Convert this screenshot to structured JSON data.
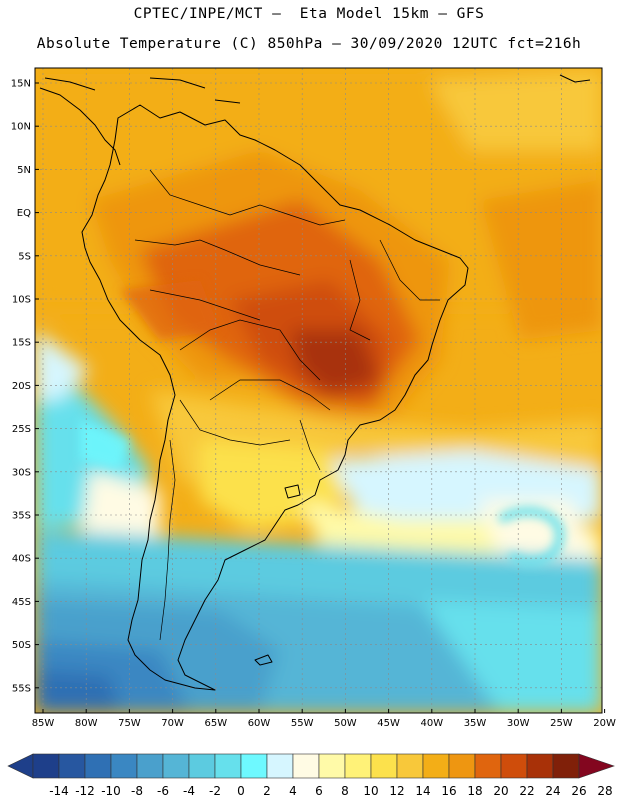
{
  "header": {
    "line1": "CPTEC/INPE/MCT —  Eta Model 15km — GFS",
    "line2": "Absolute Temperature (C) 850hPa — 30/09/2020 12UTC fct=216h"
  },
  "lat_labels": [
    "15N",
    "10N",
    "5N",
    "EQ",
    "5S",
    "10S",
    "15S",
    "20S",
    "25S",
    "30S",
    "35S",
    "40S",
    "45S",
    "50S",
    "55S"
  ],
  "lon_labels": [
    "85W",
    "80W",
    "75W",
    "70W",
    "65W",
    "60W",
    "55W",
    "50W",
    "45W",
    "40W",
    "35W",
    "30W",
    "25W",
    "20W"
  ],
  "colorbar": {
    "ticks": [
      "-14",
      "-12",
      "-10",
      "-8",
      "-6",
      "-4",
      "-2",
      "0",
      "2",
      "4",
      "6",
      "8",
      "10",
      "12",
      "14",
      "16",
      "18",
      "20",
      "22",
      "24",
      "26",
      "28"
    ],
    "colors": [
      "#1e3f8a",
      "#2757a0",
      "#2f70b4",
      "#3a87c2",
      "#4aa0cc",
      "#55b5d6",
      "#5ccbe0",
      "#66e0ec",
      "#6ef9ff",
      "#d6f6ff",
      "#fffbe4",
      "#fffaa8",
      "#fff278",
      "#fce14c",
      "#f8c83a",
      "#f3ae17",
      "#ee9611",
      "#e0650e",
      "#cf4d0b",
      "#a83108",
      "#802009"
    ],
    "left_end_color": "#1e3f8a",
    "right_end_color": "#83061f"
  }
}
